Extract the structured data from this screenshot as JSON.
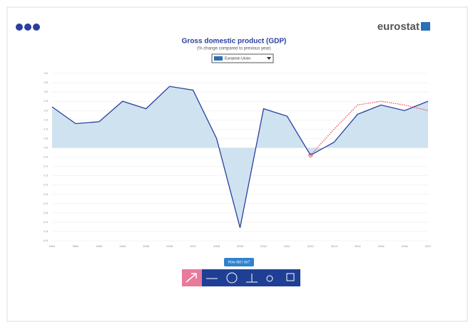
{
  "brand": "eurostat",
  "chart_data": {
    "type": "area-line",
    "title": "Gross domestic product (GDP)",
    "subtitle": "(% change compared to previous year)",
    "selector": "European Union",
    "button": "How did I do?",
    "categories": [
      "2001",
      "2002",
      "2003",
      "2004",
      "2005",
      "2006",
      "2007",
      "2008",
      "2009",
      "2010",
      "2011",
      "2012",
      "2013",
      "2014",
      "2015",
      "2016",
      "2017"
    ],
    "series": [
      {
        "color": "#2a3f9e",
        "fill": "#cfe2f0",
        "values": [
          2.2,
          1.3,
          1.4,
          2.5,
          2.1,
          3.3,
          3.1,
          0.5,
          -4.3,
          2.1,
          1.7,
          -0.4,
          0.3,
          1.8,
          2.3,
          2.0,
          2.5
        ],
        "style": "solid"
      },
      {
        "color": "#e8425a",
        "values": [
          null,
          null,
          null,
          null,
          null,
          null,
          null,
          null,
          null,
          null,
          null,
          -0.4,
          1.0,
          2.3,
          2.5,
          2.3,
          2.0
        ],
        "style": "dotted"
      }
    ],
    "ylim": [
      -5,
      4
    ],
    "yticks": [
      {
        "value": 4,
        "label": "4.0"
      },
      {
        "value": 3.5,
        "label": "3.5"
      },
      {
        "value": 3,
        "label": "3.0"
      },
      {
        "value": 2.5,
        "label": "2.5"
      },
      {
        "value": 2,
        "label": "2.0"
      },
      {
        "value": 1.5,
        "label": "1.5"
      },
      {
        "value": 1,
        "label": "1.0"
      },
      {
        "value": 0.5,
        "label": "0.5"
      },
      {
        "value": 0,
        "label": "0.0"
      },
      {
        "value": -0.5,
        "label": "-0.5"
      },
      {
        "value": -1,
        "label": "-1.0"
      },
      {
        "value": -1.5,
        "label": "-1.5"
      },
      {
        "value": -2,
        "label": "-2.0"
      },
      {
        "value": -2.5,
        "label": "-2.5"
      },
      {
        "value": -3,
        "label": "-3.0"
      },
      {
        "value": -3.5,
        "label": "-3.5"
      },
      {
        "value": -4,
        "label": "-4.0"
      },
      {
        "value": -4.5,
        "label": "-4.5"
      },
      {
        "value": -5,
        "label": "-5.0"
      }
    ],
    "grid": true
  }
}
